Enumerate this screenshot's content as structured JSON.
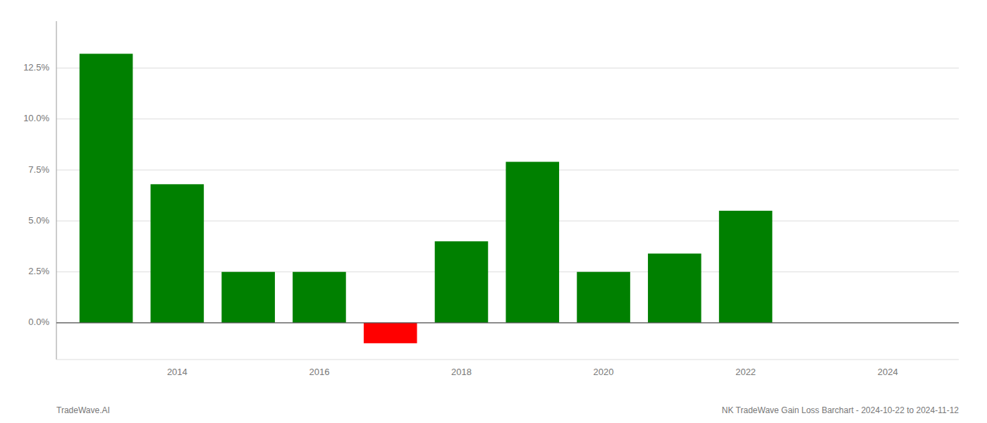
{
  "chart_data": {
    "type": "bar",
    "x": [
      2013,
      2014,
      2015,
      2016,
      2017,
      2018,
      2019,
      2020,
      2021,
      2022,
      2023
    ],
    "values": [
      0.132,
      0.068,
      0.025,
      0.025,
      -0.01,
      0.04,
      0.079,
      0.025,
      0.034,
      0.055,
      0.0
    ],
    "colors": [
      "#008000",
      "#008000",
      "#008000",
      "#008000",
      "#ff0000",
      "#008000",
      "#008000",
      "#008000",
      "#008000",
      "#008000",
      "#008000"
    ],
    "xlim": [
      2012.3,
      2025.0
    ],
    "xticks": [
      2014,
      2016,
      2018,
      2020,
      2022,
      2024
    ],
    "ylim": [
      -0.018,
      0.148
    ],
    "yticks": [
      {
        "value": 0.0,
        "label": "0.0%"
      },
      {
        "value": 0.025,
        "label": "2.5%"
      },
      {
        "value": 0.05,
        "label": "5.0%"
      },
      {
        "value": 0.075,
        "label": "7.5%"
      },
      {
        "value": 0.1,
        "label": "10.0%"
      },
      {
        "value": 0.125,
        "label": "12.5%"
      }
    ],
    "grid": true,
    "annotations": [
      "TradeWave.AI",
      "NK TradeWave Gain Loss Barchart - 2024-10-22 to 2024-11-12"
    ]
  }
}
